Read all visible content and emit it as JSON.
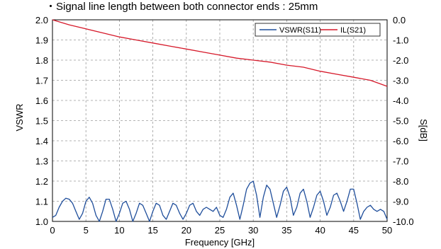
{
  "chart_data": {
    "type": "line",
    "title": "・Signal line length between both connector ends : 25mm",
    "xlabel": "Frequency [GHz]",
    "ylabel": "VSWR",
    "y2label": "S[dB]",
    "xlim": [
      0,
      50
    ],
    "ylim": [
      1.0,
      2.0
    ],
    "y2lim": [
      -10.0,
      0.0
    ],
    "x_ticks": [
      "0",
      "5",
      "10",
      "15",
      "20",
      "25",
      "30",
      "35",
      "40",
      "45",
      "50"
    ],
    "y_ticks": [
      "1.0",
      "1.1",
      "1.2",
      "1.3",
      "1.4",
      "1.5",
      "1.6",
      "1.7",
      "1.8",
      "1.9",
      "2.0"
    ],
    "y2_ticks": [
      "-10.0",
      "-9.0",
      "-8.0",
      "-7.0",
      "-6.0",
      "-5.0",
      "-4.0",
      "-3.0",
      "-2.0",
      "-1.0",
      "0.0"
    ],
    "grid": true,
    "legend_position": "top-right",
    "series": [
      {
        "name": "VSWR(S11)",
        "axis": "left",
        "color": "#1f4e9b",
        "x": [
          0,
          0.5,
          1.0,
          1.5,
          2.0,
          2.5,
          3.0,
          3.5,
          4.0,
          4.5,
          5.0,
          5.5,
          6.0,
          6.5,
          7.0,
          7.5,
          8.0,
          8.5,
          9.0,
          9.5,
          10.0,
          10.5,
          11.0,
          11.5,
          12.0,
          12.5,
          13.0,
          13.5,
          14.0,
          14.5,
          15.0,
          15.5,
          16.0,
          16.5,
          17.0,
          17.5,
          18.0,
          18.5,
          19.0,
          19.5,
          20.0,
          20.5,
          21.0,
          21.5,
          22.0,
          22.5,
          23.0,
          23.5,
          24.0,
          24.5,
          25.0,
          25.5,
          26.0,
          26.5,
          27.0,
          27.5,
          28.0,
          28.5,
          29.0,
          29.5,
          30.0,
          30.5,
          31.0,
          31.5,
          32.0,
          32.5,
          33.0,
          33.5,
          34.0,
          34.5,
          35.0,
          35.5,
          36.0,
          36.5,
          37.0,
          37.5,
          38.0,
          38.5,
          39.0,
          39.5,
          40.0,
          40.5,
          41.0,
          41.5,
          42.0,
          42.5,
          43.0,
          43.5,
          44.0,
          44.5,
          45.0,
          45.5,
          46.0,
          46.5,
          47.0,
          47.5,
          48.0,
          48.5,
          49.0,
          49.5,
          50.0
        ],
        "values": [
          1.02,
          1.03,
          1.07,
          1.1,
          1.115,
          1.11,
          1.09,
          1.05,
          1.01,
          1.04,
          1.1,
          1.12,
          1.09,
          1.03,
          1.0,
          1.05,
          1.11,
          1.11,
          1.06,
          1.0,
          1.04,
          1.09,
          1.1,
          1.06,
          1.0,
          1.04,
          1.09,
          1.08,
          1.04,
          1.0,
          1.05,
          1.09,
          1.08,
          1.03,
          1.01,
          1.05,
          1.09,
          1.08,
          1.04,
          1.01,
          1.04,
          1.08,
          1.09,
          1.05,
          1.03,
          1.06,
          1.07,
          1.06,
          1.05,
          1.07,
          1.03,
          1.02,
          1.06,
          1.12,
          1.14,
          1.08,
          1.01,
          1.08,
          1.16,
          1.19,
          1.2,
          1.13,
          1.02,
          1.12,
          1.18,
          1.16,
          1.09,
          1.02,
          1.08,
          1.15,
          1.17,
          1.12,
          1.03,
          1.07,
          1.14,
          1.16,
          1.1,
          1.02,
          1.07,
          1.13,
          1.15,
          1.1,
          1.03,
          1.07,
          1.13,
          1.14,
          1.1,
          1.05,
          1.1,
          1.16,
          1.16,
          1.09,
          1.01,
          1.05,
          1.07,
          1.08,
          1.06,
          1.05,
          1.06,
          1.05,
          1.01
        ]
      },
      {
        "name": "IL(S21)",
        "axis": "right",
        "color": "#d6192a",
        "x": [
          0,
          2.5,
          5,
          7.5,
          10,
          12.5,
          15,
          17.5,
          20,
          22.5,
          25,
          27.5,
          30,
          32.5,
          35,
          37.5,
          40,
          42.5,
          45,
          47.5,
          50
        ],
        "values": [
          0.0,
          -0.25,
          -0.45,
          -0.65,
          -0.85,
          -1.0,
          -1.15,
          -1.3,
          -1.45,
          -1.6,
          -1.75,
          -1.9,
          -2.0,
          -2.1,
          -2.25,
          -2.35,
          -2.55,
          -2.7,
          -2.85,
          -3.0,
          -3.3
        ]
      }
    ]
  }
}
